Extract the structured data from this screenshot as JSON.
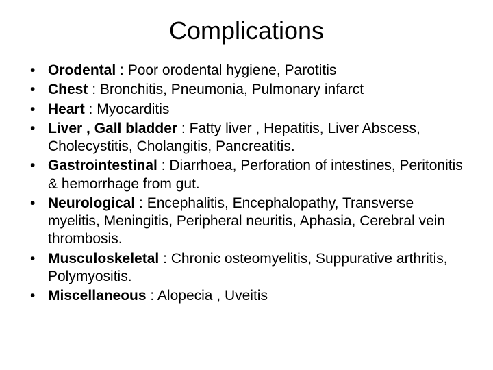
{
  "title": "Complications",
  "items": [
    {
      "label": "Orodental",
      "desc": " : Poor orodental hygiene, Parotitis"
    },
    {
      "label": "Chest",
      "desc": " : Bronchitis, Pneumonia, Pulmonary infarct"
    },
    {
      "label": "Heart",
      "desc": " : Myocarditis"
    },
    {
      "label": "Liver , Gall bladder",
      "desc": " : Fatty liver , Hepatitis, Liver Abscess, Cholecystitis, Cholangitis, Pancreatitis."
    },
    {
      "label": "Gastrointestinal",
      "desc": " : Diarrhoea, Perforation of intestines, Peritonitis & hemorrhage from gut."
    },
    {
      "label": "Neurological",
      "desc": " : Encephalitis, Encephalopathy, Transverse myelitis, Meningitis, Peripheral neuritis, Aphasia, Cerebral vein thrombosis."
    },
    {
      "label": "Musculoskeletal",
      "desc": " : Chronic osteomyelitis, Suppurative arthritis, Polymyositis."
    },
    {
      "label": "Miscellaneous",
      "desc": " : Alopecia , Uveitis"
    }
  ]
}
